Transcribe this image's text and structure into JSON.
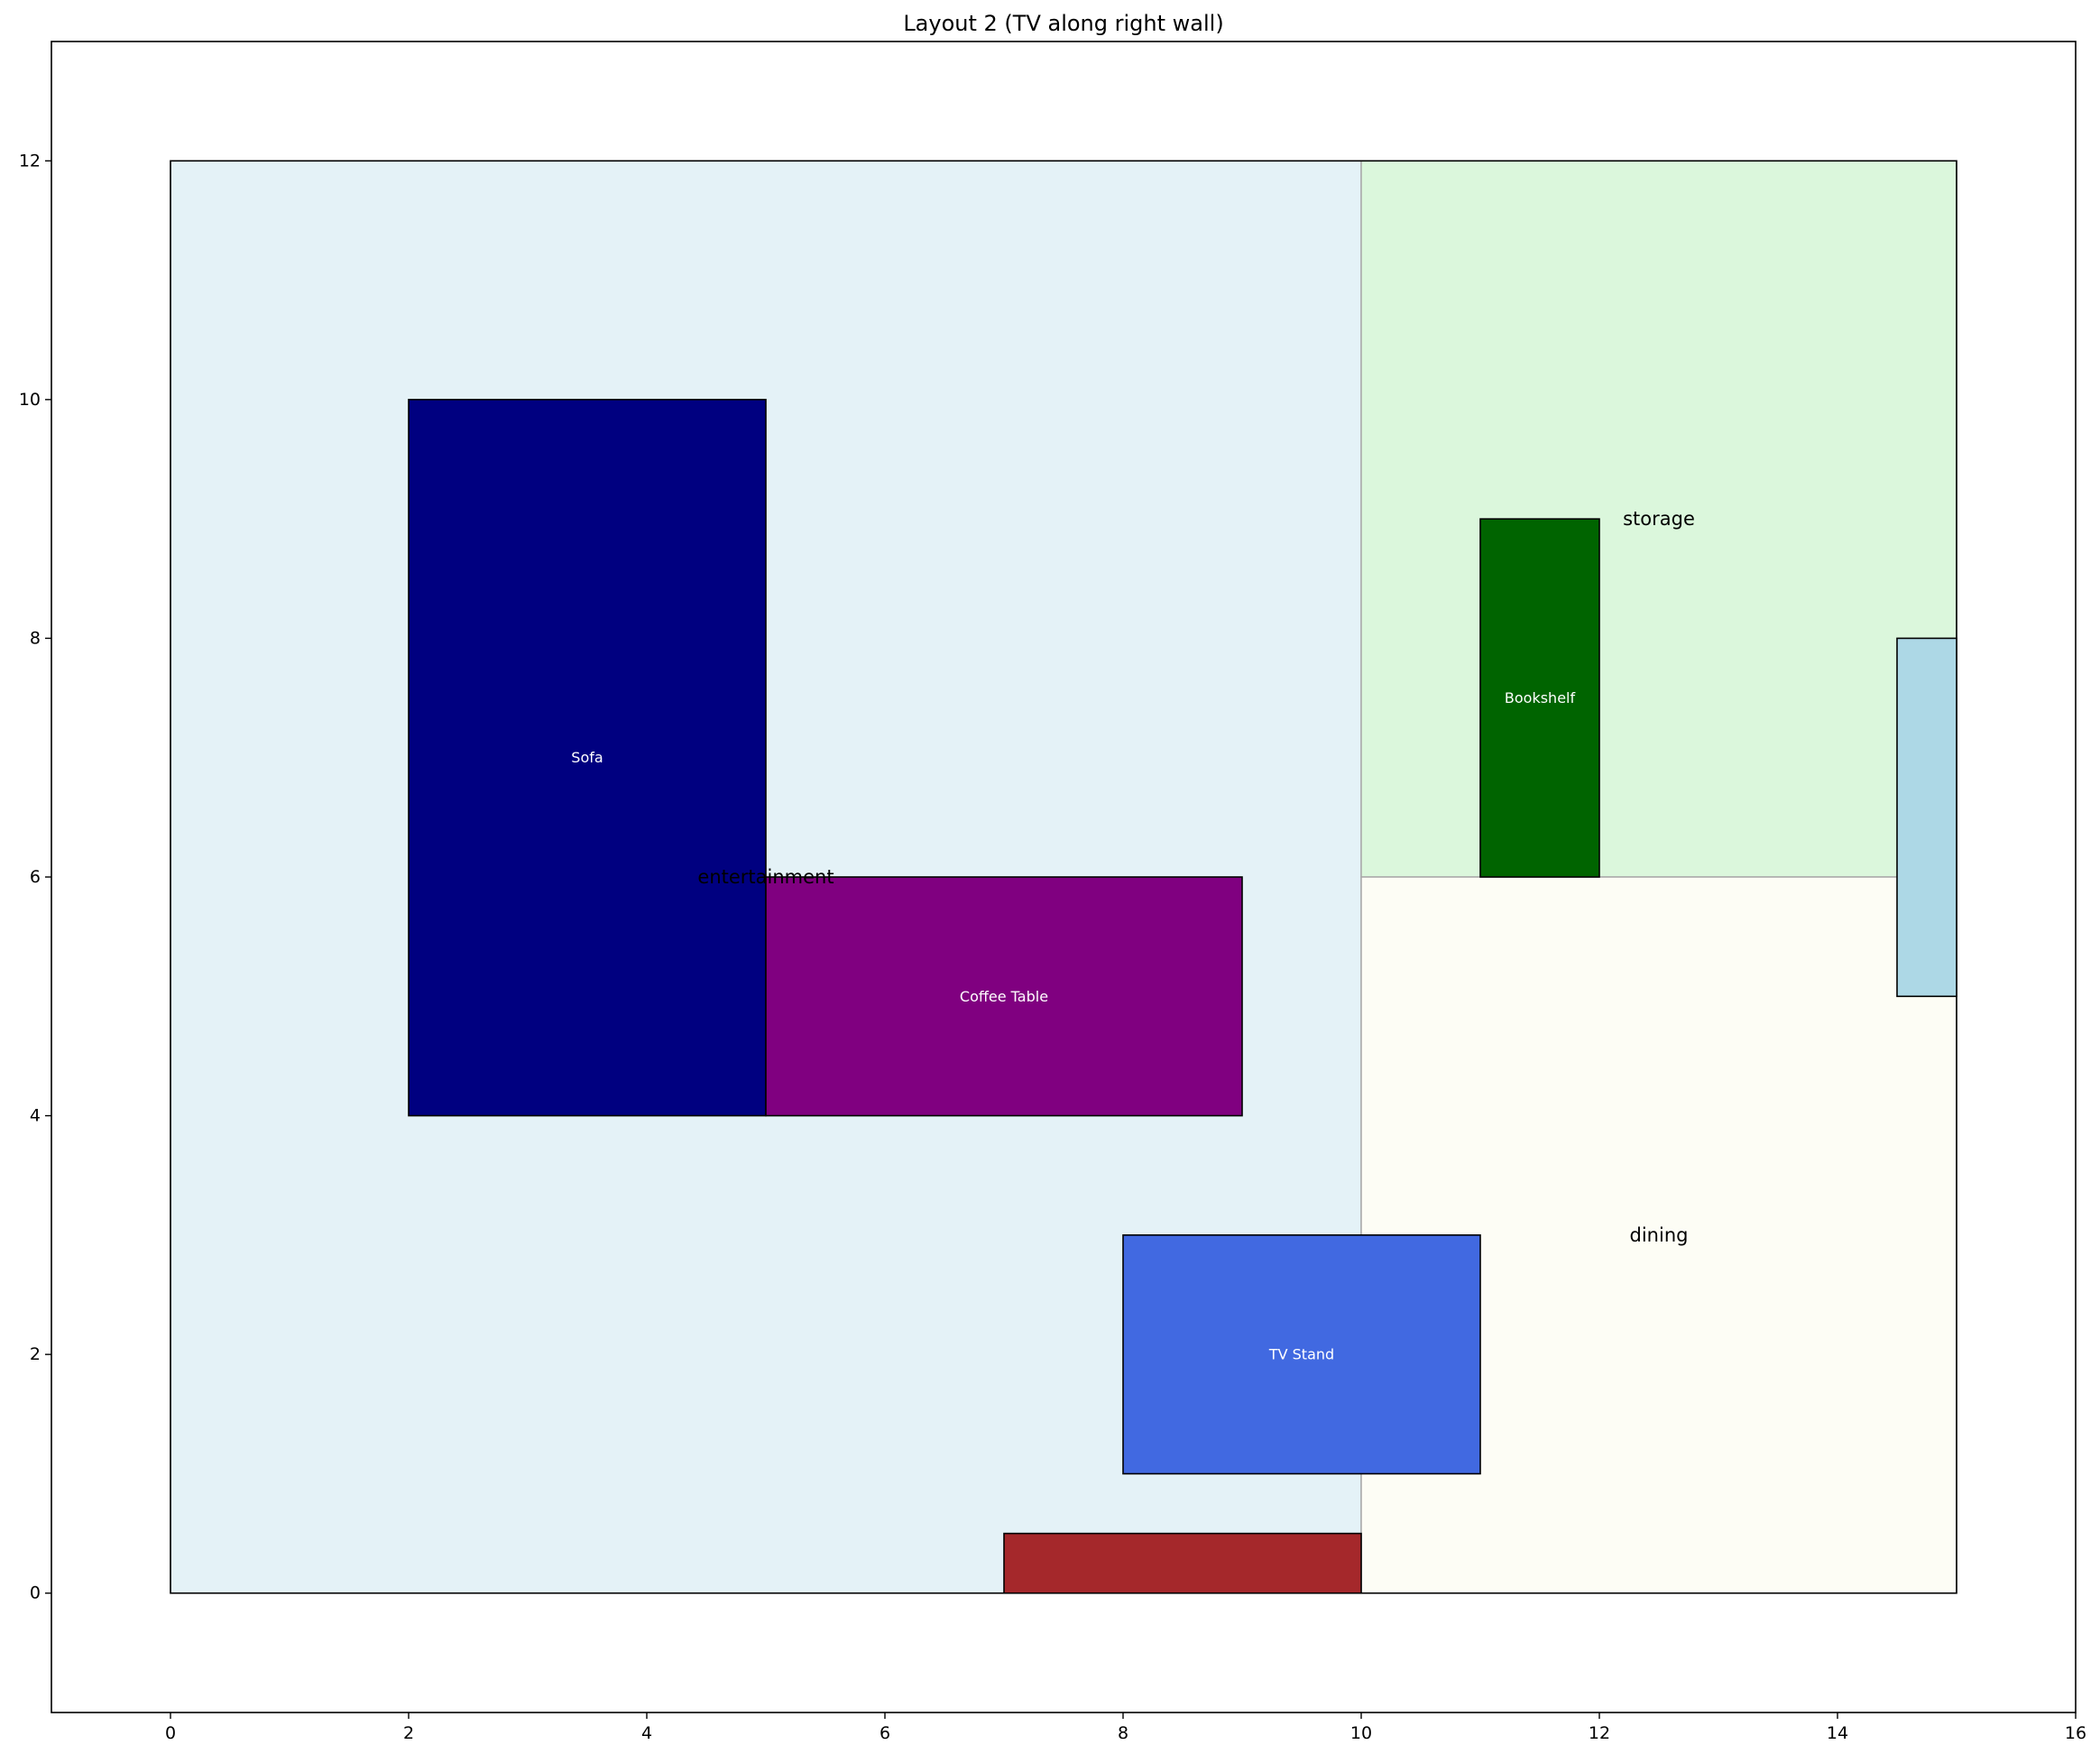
{
  "chart_data": {
    "type": "diagram",
    "title": "Layout 2 (TV along right wall)",
    "xlim": [
      -1,
      16
    ],
    "ylim": [
      -1,
      13
    ],
    "xticks": [
      0,
      2,
      4,
      6,
      8,
      10,
      12,
      14,
      16
    ],
    "yticks": [
      0,
      2,
      4,
      6,
      8,
      10,
      12
    ],
    "room": {
      "x": 0,
      "y": 0,
      "width": 15,
      "height": 12
    },
    "zones": [
      {
        "name": "entertainment",
        "x": 0,
        "y": 0,
        "width": 10,
        "height": 12,
        "color": "#e4f2f7",
        "label_x": 5,
        "label_y": 6
      },
      {
        "name": "storage",
        "x": 10,
        "y": 6,
        "width": 5,
        "height": 6,
        "color": "#dbf7dc",
        "label_x": 12.5,
        "label_y": 9
      },
      {
        "name": "dining",
        "x": 10,
        "y": 0,
        "width": 5,
        "height": 6,
        "color": "#fdfdf5",
        "label_x": 12.5,
        "label_y": 3
      }
    ],
    "furniture": [
      {
        "name": "Sofa",
        "x": 2,
        "y": 4,
        "width": 3,
        "height": 6,
        "color": "#000080"
      },
      {
        "name": "Coffee Table",
        "x": 5,
        "y": 4,
        "width": 4,
        "height": 2,
        "color": "#800080"
      },
      {
        "name": "TV Stand",
        "x": 8,
        "y": 1,
        "width": 3,
        "height": 2,
        "color": "#4169e1"
      },
      {
        "name": "Bookshelf",
        "x": 11,
        "y": 6,
        "width": 1,
        "height": 3,
        "color": "#006400"
      }
    ],
    "openings": [
      {
        "x": 7,
        "y": 0,
        "width": 3,
        "height": 0.5,
        "color": "#a5282b"
      },
      {
        "x": 14.5,
        "y": 5,
        "width": 0.5,
        "height": 3,
        "color": "#add8e6"
      }
    ]
  }
}
